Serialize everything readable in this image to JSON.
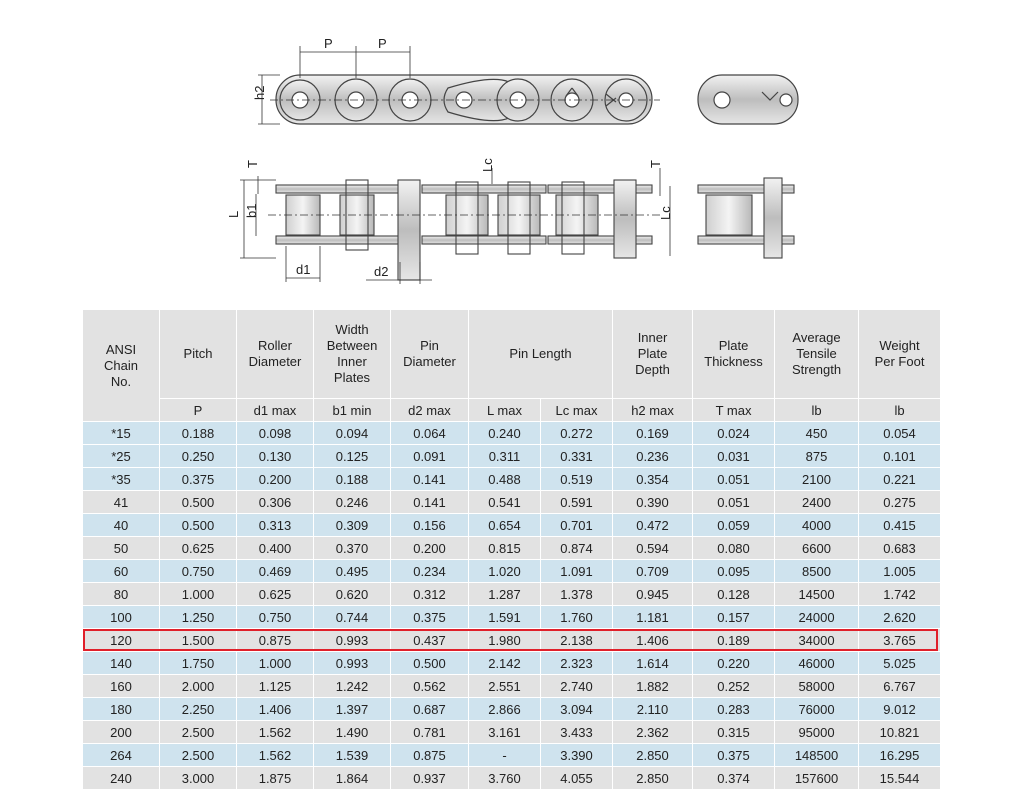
{
  "drawing": {
    "labels": {
      "p1": "P",
      "p2": "P",
      "h2": "h2",
      "t1": "T",
      "lc1": "Lc",
      "t2": "T",
      "l": "L",
      "b1": "b1",
      "lc2": "Lc",
      "d1": "d1",
      "d2": "d2"
    }
  },
  "table": {
    "headers": {
      "ansi": "ANSI Chain No.",
      "pitch": "Pitch",
      "roller": "Roller Diameter",
      "width": "Width Between Inner Plates",
      "pin": "Pin Diameter",
      "pin_length": "Pin Length",
      "inner": "Inner Plate Depth",
      "plate": "Plate Thickness",
      "tensile": "Average Tensile Strength",
      "weight": "Weight Per Foot"
    },
    "units": [
      "P",
      "d1 max",
      "b1 min",
      "d2 max",
      "L max",
      "Lc max",
      "h2 max",
      "T max",
      "lb",
      "lb"
    ],
    "rows": [
      [
        "*15",
        "0.188",
        "0.098",
        "0.094",
        "0.064",
        "0.240",
        "0.272",
        "0.169",
        "0.024",
        "450",
        "0.054"
      ],
      [
        "*25",
        "0.250",
        "0.130",
        "0.125",
        "0.091",
        "0.311",
        "0.331",
        "0.236",
        "0.031",
        "875",
        "0.101"
      ],
      [
        "*35",
        "0.375",
        "0.200",
        "0.188",
        "0.141",
        "0.488",
        "0.519",
        "0.354",
        "0.051",
        "2100",
        "0.221"
      ],
      [
        "41",
        "0.500",
        "0.306",
        "0.246",
        "0.141",
        "0.541",
        "0.591",
        "0.390",
        "0.051",
        "2400",
        "0.275"
      ],
      [
        "40",
        "0.500",
        "0.313",
        "0.309",
        "0.156",
        "0.654",
        "0.701",
        "0.472",
        "0.059",
        "4000",
        "0.415"
      ],
      [
        "50",
        "0.625",
        "0.400",
        "0.370",
        "0.200",
        "0.815",
        "0.874",
        "0.594",
        "0.080",
        "6600",
        "0.683"
      ],
      [
        "60",
        "0.750",
        "0.469",
        "0.495",
        "0.234",
        "1.020",
        "1.091",
        "0.709",
        "0.095",
        "8500",
        "1.005"
      ],
      [
        "80",
        "1.000",
        "0.625",
        "0.620",
        "0.312",
        "1.287",
        "1.378",
        "0.945",
        "0.128",
        "14500",
        "1.742"
      ],
      [
        "100",
        "1.250",
        "0.750",
        "0.744",
        "0.375",
        "1.591",
        "1.760",
        "1.181",
        "0.157",
        "24000",
        "2.620"
      ],
      [
        "120",
        "1.500",
        "0.875",
        "0.993",
        "0.437",
        "1.980",
        "2.138",
        "1.406",
        "0.189",
        "34000",
        "3.765"
      ],
      [
        "140",
        "1.750",
        "1.000",
        "0.993",
        "0.500",
        "2.142",
        "2.323",
        "1.614",
        "0.220",
        "46000",
        "5.025"
      ],
      [
        "160",
        "2.000",
        "1.125",
        "1.242",
        "0.562",
        "2.551",
        "2.740",
        "1.882",
        "0.252",
        "58000",
        "6.767"
      ],
      [
        "180",
        "2.250",
        "1.406",
        "1.397",
        "0.687",
        "2.866",
        "3.094",
        "2.110",
        "0.283",
        "76000",
        "9.012"
      ],
      [
        "200",
        "2.500",
        "1.562",
        "1.490",
        "0.781",
        "3.161",
        "3.433",
        "2.362",
        "0.315",
        "95000",
        "10.821"
      ],
      [
        "264",
        "2.500",
        "1.562",
        "1.539",
        "0.875",
        "-",
        "3.390",
        "2.850",
        "0.375",
        "148500",
        "16.295"
      ],
      [
        "240",
        "3.000",
        "1.875",
        "1.864",
        "0.937",
        "3.760",
        "4.055",
        "2.850",
        "0.374",
        "157600",
        "15.544"
      ]
    ],
    "row_colors": [
      "blue",
      "blue",
      "blue",
      "grey",
      "blue",
      "grey",
      "blue",
      "grey",
      "blue",
      "grey",
      "blue",
      "grey",
      "blue",
      "grey",
      "blue",
      "grey"
    ],
    "highlight_row": 9,
    "highlight_color": "#e0202a"
  }
}
